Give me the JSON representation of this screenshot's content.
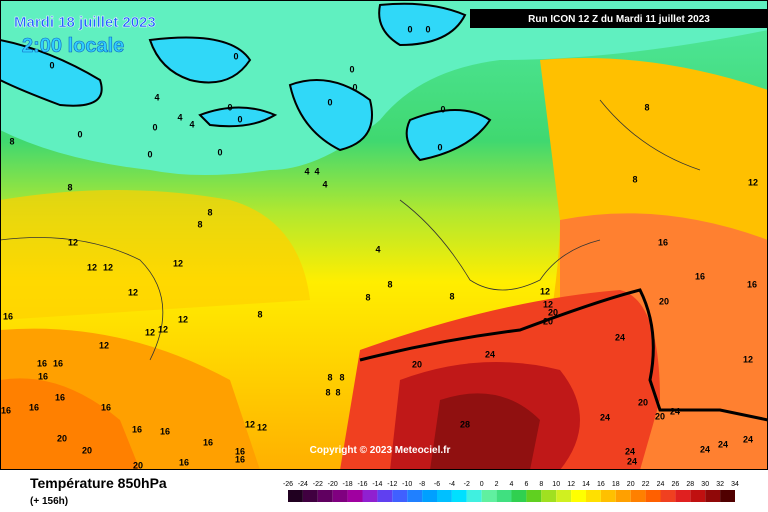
{
  "header": {
    "date": "Mardi 18 juillet 2023",
    "time": "2:00 locale",
    "run": "Run ICON 12 Z du Mardi 11 juillet 2023"
  },
  "copyright": "Copyright © 2023 Meteociel.fr",
  "footer": {
    "title": "Température 850hPa",
    "lead": "(+ 156h)"
  },
  "scale": {
    "ticks": [
      -26,
      -24,
      -22,
      -20,
      -18,
      -16,
      -14,
      -12,
      -10,
      -8,
      -6,
      -4,
      -2,
      0,
      2,
      4,
      6,
      8,
      10,
      12,
      14,
      16,
      18,
      20,
      22,
      24,
      26,
      28,
      30,
      32,
      34
    ],
    "colors": [
      "#200020",
      "#400040",
      "#600060",
      "#800080",
      "#a000a0",
      "#9020d0",
      "#6040f0",
      "#4060ff",
      "#2080ff",
      "#00a0ff",
      "#00c0ff",
      "#00e0ff",
      "#40f0e0",
      "#60f0a0",
      "#40e080",
      "#30d050",
      "#60d020",
      "#a0e020",
      "#d0f020",
      "#ffff00",
      "#ffe000",
      "#ffc000",
      "#ffa000",
      "#ff8000",
      "#ff6000",
      "#f04020",
      "#e02020",
      "#c01010",
      "#900808",
      "#500000"
    ]
  },
  "contour_labels": [
    0,
    0,
    0,
    0,
    0,
    0,
    0,
    0,
    0,
    0,
    0,
    0,
    0,
    4,
    4,
    4,
    0,
    0,
    8,
    8,
    4,
    4,
    4,
    8,
    8,
    4,
    8,
    8,
    8,
    8,
    8,
    8,
    12,
    12,
    12,
    12,
    12,
    12,
    12,
    12,
    12,
    12,
    12,
    12,
    16,
    16,
    16,
    16,
    16,
    16,
    16,
    16,
    16,
    16,
    16,
    16,
    16,
    16,
    16,
    16,
    16,
    20,
    20,
    20,
    20,
    20,
    20,
    20,
    20,
    20,
    24,
    24,
    24,
    24,
    24,
    24,
    24,
    24,
    24,
    28,
    12,
    12,
    12,
    8,
    8,
    8,
    8
  ]
}
